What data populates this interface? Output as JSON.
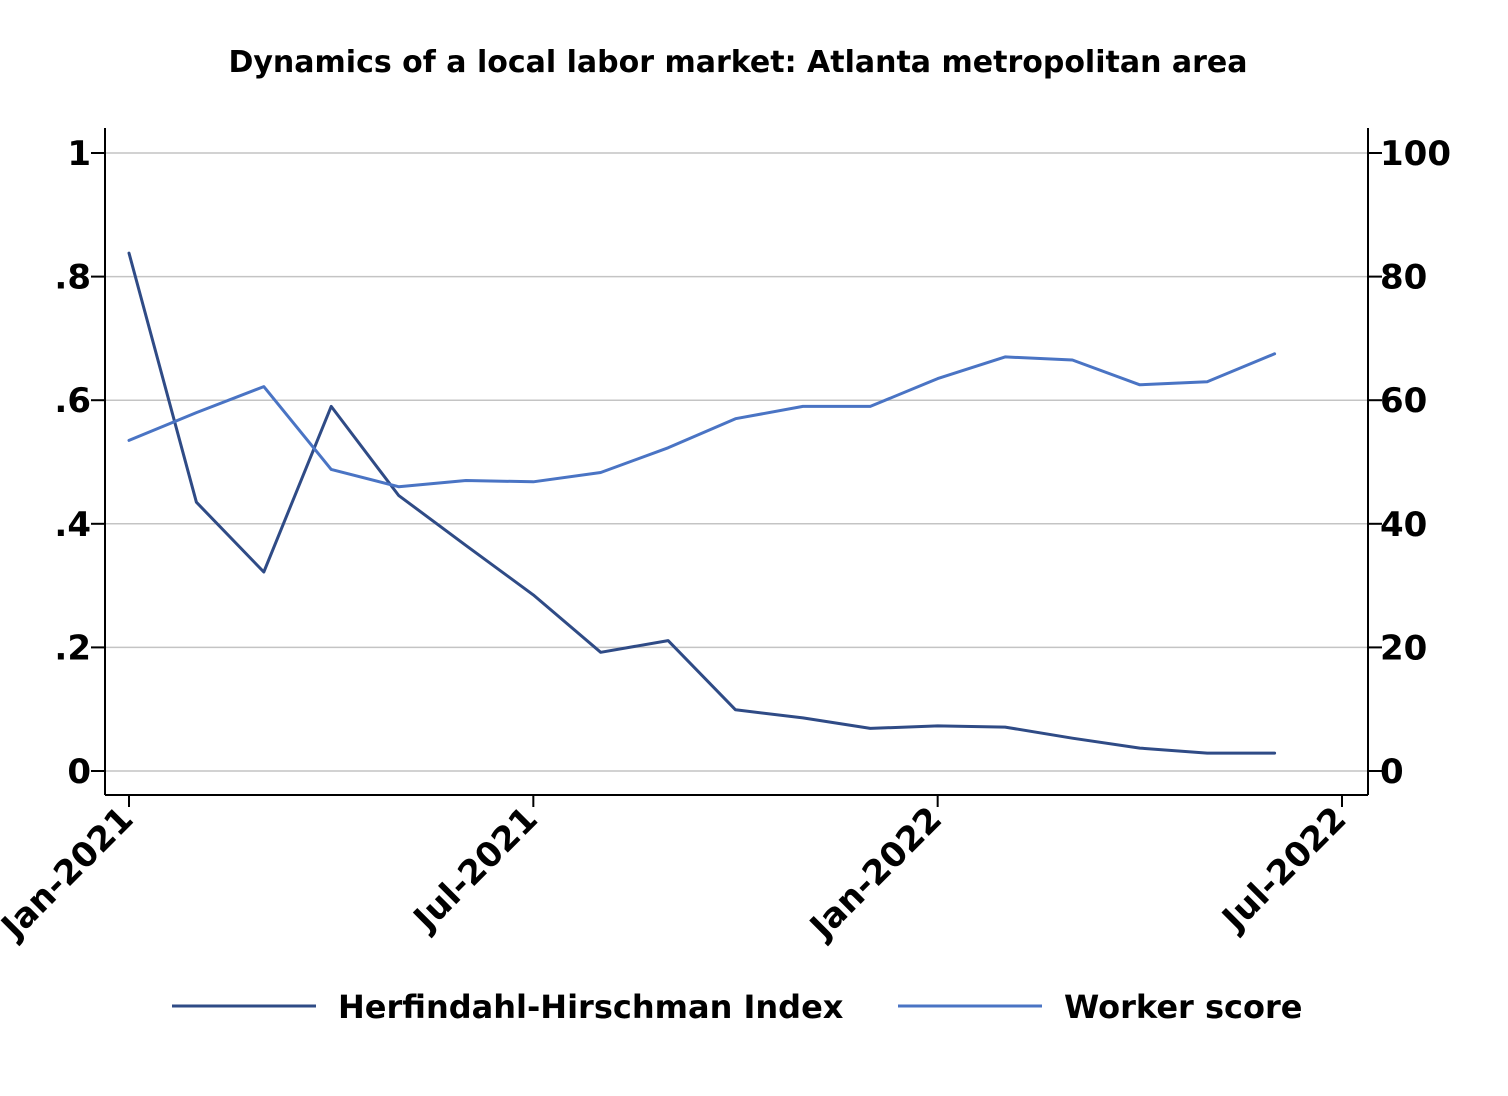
{
  "chart_data": {
    "type": "line",
    "title": "Dynamics of a local labor market: Atlanta metropolitan area",
    "x": [
      "2021-01",
      "2021-02",
      "2021-03",
      "2021-04",
      "2021-05",
      "2021-06",
      "2021-07",
      "2021-08",
      "2021-09",
      "2021-10",
      "2021-11",
      "2021-12",
      "2022-01",
      "2022-02",
      "2022-03",
      "2022-04",
      "2022-05",
      "2022-06"
    ],
    "x_ticks": [
      "Jan-2021",
      "Jul-2021",
      "Jan-2022",
      "Jul-2022"
    ],
    "y_left_ticks": [
      "0",
      ".2",
      ".4",
      ".6",
      ".8",
      "1"
    ],
    "y_right_ticks": [
      "0",
      "20",
      "40",
      "60",
      "80",
      "100"
    ],
    "y_left_lim": [
      0,
      1
    ],
    "y_right_lim": [
      0,
      100
    ],
    "grid": true,
    "legend_position": "bottom",
    "series": [
      {
        "name": "Herfindahl-Hirschman Index",
        "axis": "left",
        "color": "#2f4b86",
        "values": [
          0.838,
          0.435,
          0.322,
          0.59,
          0.446,
          0.365,
          0.285,
          0.192,
          0.211,
          0.099,
          0.086,
          0.069,
          0.073,
          0.071,
          0.053,
          0.037,
          0.029,
          0.029
        ]
      },
      {
        "name": "Worker score",
        "axis": "right",
        "color": "#4a74c4",
        "values": [
          53.5,
          58.0,
          62.2,
          48.8,
          46.0,
          47.0,
          46.8,
          48.3,
          52.3,
          57.0,
          59.0,
          59.0,
          63.5,
          67.0,
          66.5,
          62.5,
          63.0,
          67.5
        ]
      }
    ]
  }
}
